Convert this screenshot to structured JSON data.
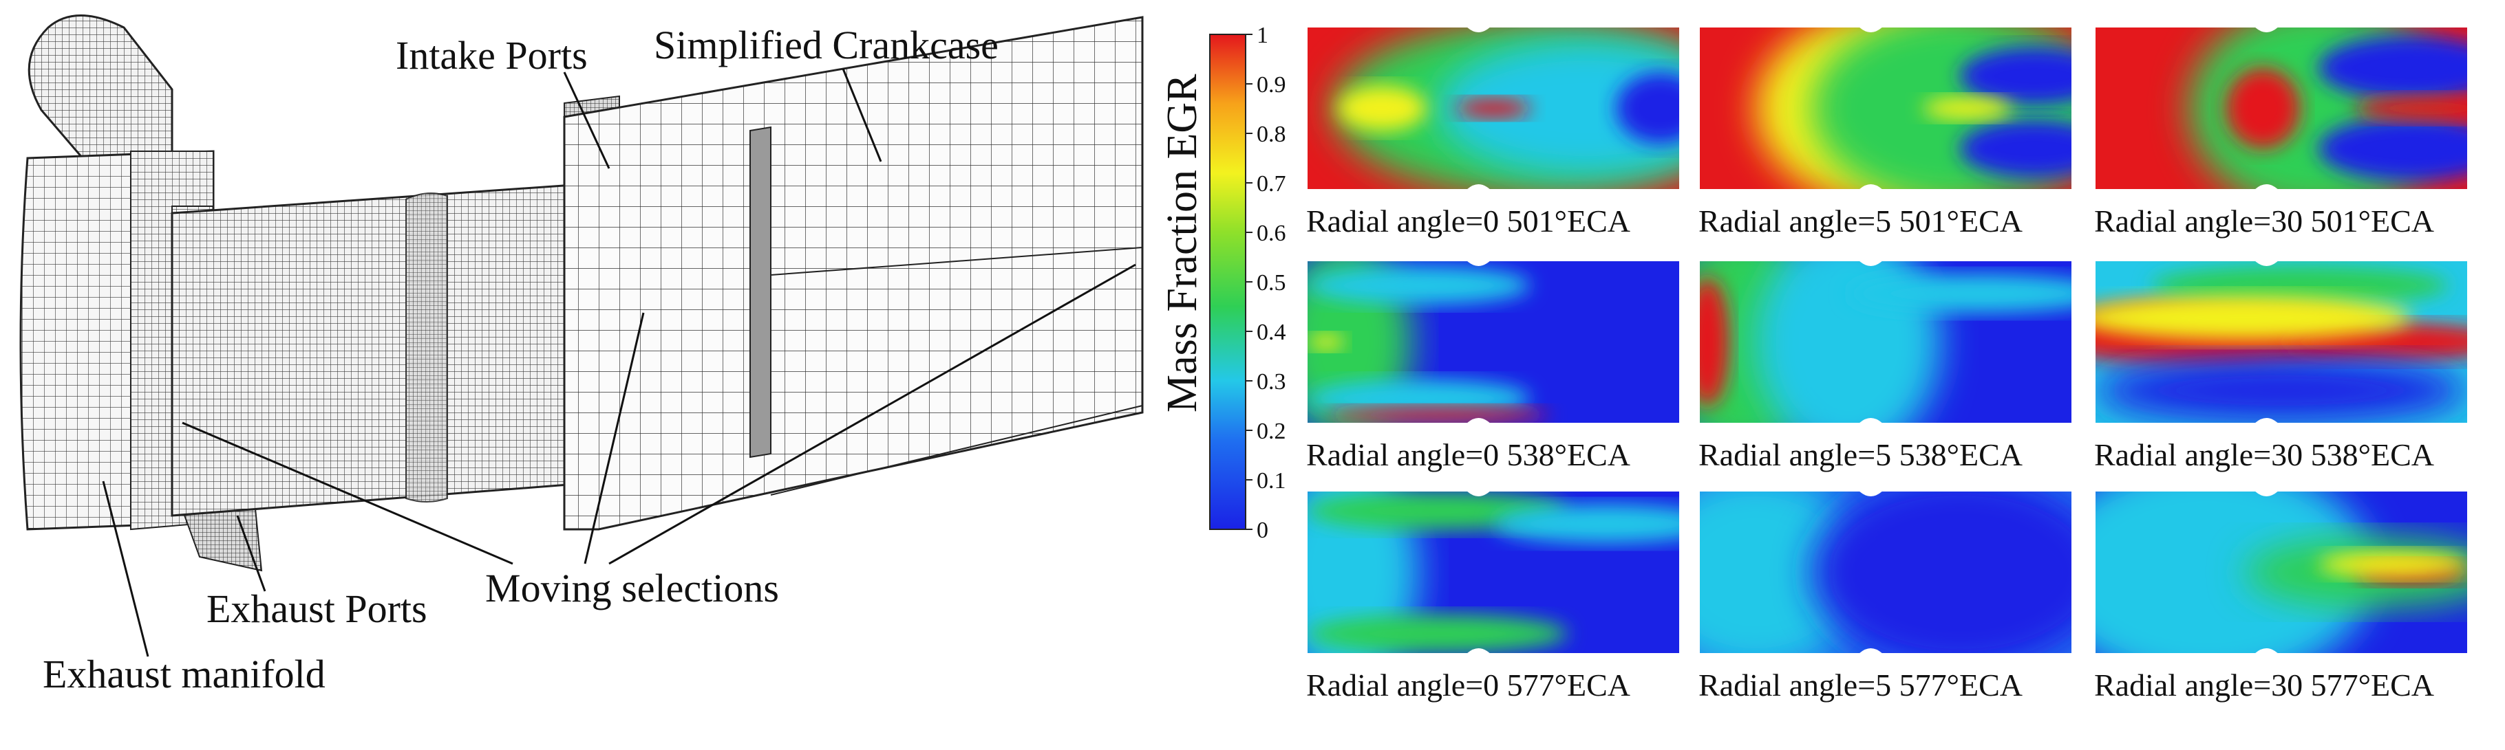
{
  "mesh_labels": {
    "intake_ports": "Intake Ports",
    "simplified_crankcase": "Simplified Crankcase",
    "moving_selections": "Moving selections",
    "exhaust_ports": "Exhaust Ports",
    "exhaust_manifold": "Exhaust manifold"
  },
  "colorbar": {
    "title": "Mass Fraction EGR",
    "ticks": [
      "1",
      "0.9",
      "0.8",
      "0.7",
      "0.6",
      "0.5",
      "0.4",
      "0.3",
      "0.2",
      "0.1",
      "0"
    ]
  },
  "contours": {
    "row1": [
      {
        "caption": "Radial angle=0 501°ECA"
      },
      {
        "caption": "Radial angle=5 501°ECA"
      },
      {
        "caption": "Radial angle=30 501°ECA"
      }
    ],
    "row2": [
      {
        "caption": "Radial angle=0 538°ECA"
      },
      {
        "caption": "Radial angle=5 538°ECA"
      },
      {
        "caption": "Radial angle=30 538°ECA"
      }
    ],
    "row3": [
      {
        "caption": "Radial angle=0 577°ECA"
      },
      {
        "caption": "Radial angle=5 577°ECA"
      },
      {
        "caption": "Radial angle=30 577°ECA"
      }
    ]
  },
  "colors": {
    "red": "#e4181c",
    "orange": "#f7a21a",
    "yellow": "#f3f21f",
    "green": "#2fcf55",
    "cyan": "#24c8e8",
    "blue": "#1a22e6",
    "mesh_line": "#2a2a2a",
    "mesh_fill": "#ececec"
  }
}
